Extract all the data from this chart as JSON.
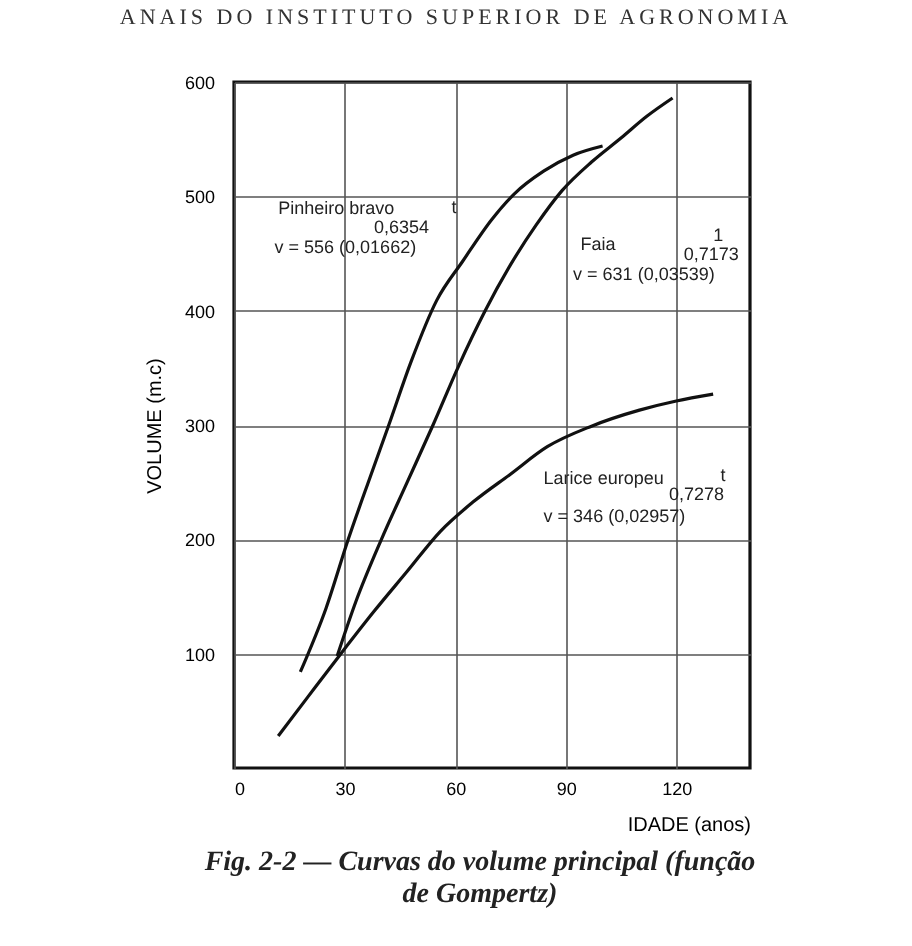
{
  "chart_data": {
    "type": "line",
    "title": "Fig. 2-2 — Curvas do volume principal (função de Gompertz)",
    "xlabel": "IDADE (anos)",
    "ylabel": "VOLUME (m.c)",
    "xlim": [
      0,
      140
    ],
    "xticks": [
      0,
      30,
      60,
      90,
      120
    ],
    "ylim": [
      0,
      600
    ],
    "yticks": [
      100,
      200,
      300,
      400,
      500,
      600
    ],
    "grid": true,
    "marker": "none",
    "line_style": "solid",
    "series": [
      {
        "color": "#111111",
        "x": [
          18,
          25,
          31,
          37,
          42,
          48,
          55,
          62,
          70,
          76,
          84,
          92,
          100
        ],
        "values": [
          84,
          140,
          200,
          255,
          300,
          355,
          409,
          443,
          480,
          502,
          522,
          536,
          544
        ]
      },
      {
        "color": "#111111",
        "x": [
          28,
          33,
          40,
          47,
          54,
          61,
          68,
          75,
          82,
          89,
          97,
          105,
          112,
          119
        ],
        "values": [
          98,
          145,
          200,
          250,
          300,
          352,
          399,
          440,
          475,
          505,
          530,
          551,
          570,
          586
        ]
      },
      {
        "color": "#111111",
        "x": [
          12,
          20,
          29,
          38,
          47,
          56,
          65,
          75,
          85,
          97,
          110,
          120,
          130
        ],
        "values": [
          28,
          62,
          100,
          137,
          172,
          207,
          233,
          257,
          281,
          299,
          313,
          321,
          327
        ]
      }
    ],
    "annotations": [
      "ANAIS DO INSTITUTO SUPERIOR DE AGRONOMIA",
      "Pinheiro bravo",
      "t",
      "0,6354",
      "v = 556 (0,01662)",
      "Faia",
      "1",
      "0,7173",
      "v = 631 (0,03539)",
      "Larice europeu",
      "t",
      "0,7278",
      "v = 346 (0,02957)"
    ]
  }
}
